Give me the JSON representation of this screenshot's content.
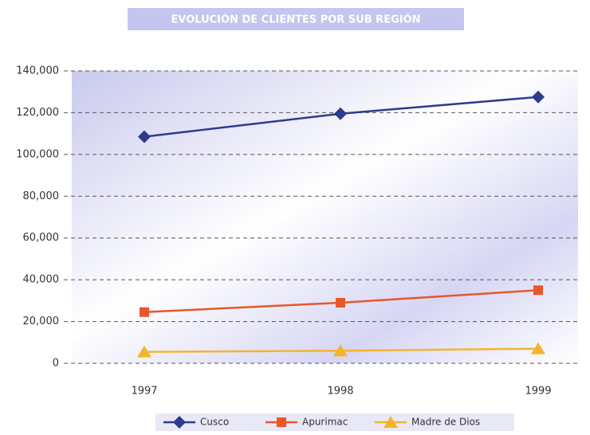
{
  "chart_data": {
    "type": "line",
    "title": "EVOLUCIÓN DE CLIENTES POR SUB REGIÓN",
    "categories": [
      "1997",
      "1998",
      "1999"
    ],
    "series": [
      {
        "name": "Cusco",
        "color": "#2e3a8c",
        "marker": "diamond",
        "values": [
          108500,
          119500,
          127500
        ]
      },
      {
        "name": "Apurimac",
        "color": "#e8562a",
        "marker": "square",
        "values": [
          24500,
          29000,
          35000
        ]
      },
      {
        "name": "Madre de Dios",
        "color": "#f5b430",
        "marker": "triangle",
        "values": [
          5500,
          6000,
          7000
        ]
      }
    ],
    "ylim": [
      0,
      140000
    ],
    "yticks": [
      0,
      {
        "value": 20000,
        "label": "20,000"
      },
      {
        "value": 40000,
        "label": "40,000"
      },
      {
        "value": 60000,
        "label": "60,000"
      },
      {
        "value": 80000,
        "label": "80,000"
      },
      {
        "value": 100000,
        "label": "100,000"
      },
      {
        "value": 120000,
        "label": "120,000"
      },
      {
        "value": 140000,
        "label": "140,000"
      }
    ],
    "grid": true,
    "legend": "bottom"
  }
}
